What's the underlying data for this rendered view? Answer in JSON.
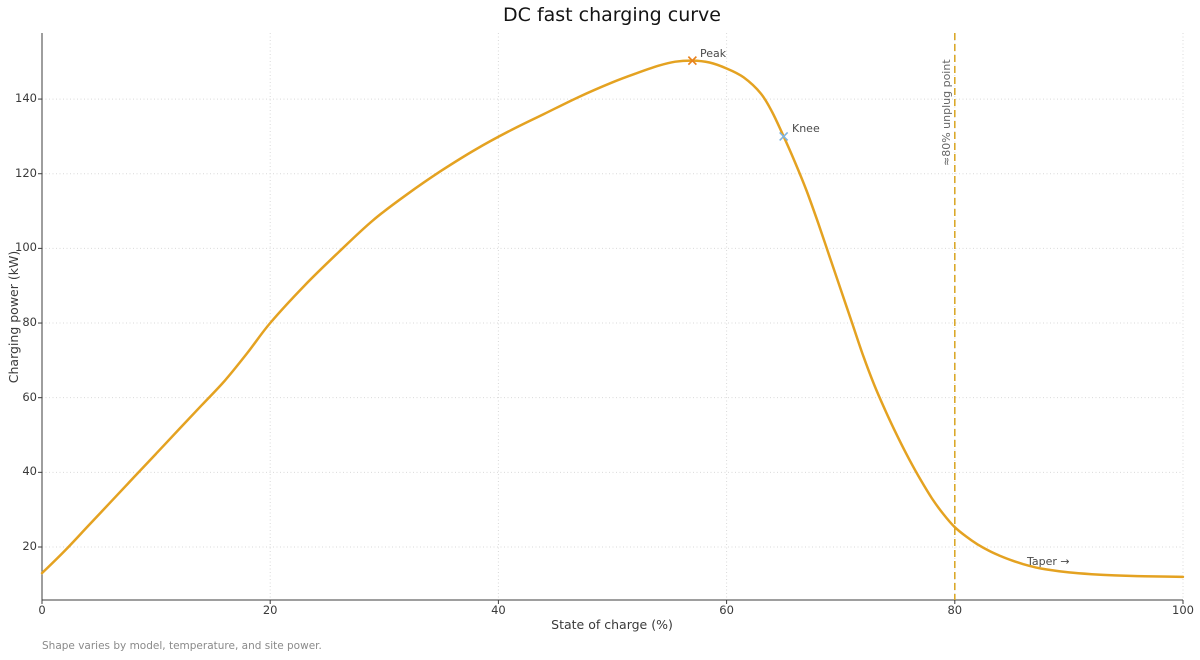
{
  "page": {
    "background": "#ffffff"
  },
  "chart_data": {
    "type": "line",
    "title": "DC fast charging curve",
    "xlabel": "State of charge (%)",
    "ylabel": "Charging power (kW)",
    "xlim": [
      0,
      100
    ],
    "ylim": [
      5.8,
      157.7
    ],
    "xticks": [
      0,
      20,
      40,
      60,
      80,
      100
    ],
    "yticks": [
      20,
      40,
      60,
      80,
      100,
      120,
      140
    ],
    "grid": true,
    "grid_style": "dotted",
    "legend": "none",
    "colors": {
      "curve": "#E4A221",
      "vline": "#D9A41F",
      "grid": "#d9d9d9",
      "spine": "#3c3c3c",
      "peak_marker": "#E8821E",
      "knee_marker": "#7FB5E0",
      "annotation_text": "#4a4a4a",
      "vline_label_text": "#666666",
      "footnote_text": "#8a8a8a"
    },
    "series": [
      {
        "name": "DC fast charging curve",
        "color": "#E4A221",
        "x": [
          0,
          2,
          4,
          6,
          8,
          10,
          12,
          14,
          16,
          18,
          20,
          23,
          26,
          29,
          32,
          35,
          38,
          41,
          44,
          47,
          50,
          52,
          54,
          55.5,
          57,
          58.5,
          60,
          61.5,
          63,
          64,
          65,
          66,
          67,
          68,
          69,
          70,
          71,
          72,
          73,
          74,
          75,
          76,
          77,
          78,
          79,
          80,
          81,
          82,
          83,
          84,
          85,
          86,
          87,
          88,
          90,
          92,
          94,
          96,
          98,
          100
        ],
        "y": [
          13,
          19,
          25.5,
          32,
          38.5,
          45,
          51.5,
          58,
          64.5,
          72,
          80,
          90,
          99,
          107.5,
          114.5,
          120.8,
          126.5,
          131.5,
          136,
          140.5,
          144.5,
          146.8,
          148.9,
          150,
          150.3,
          149.8,
          148.2,
          145.8,
          141.5,
          136.5,
          130,
          123,
          115.5,
          107,
          98,
          89,
          80,
          71,
          63,
          56,
          49.5,
          43.5,
          38,
          33,
          28.8,
          25.3,
          22.8,
          20.7,
          19,
          17.6,
          16.4,
          15.4,
          14.6,
          14,
          13.2,
          12.7,
          12.4,
          12.2,
          12.1,
          12
        ]
      }
    ],
    "annotations": [
      {
        "id": "peak",
        "text": "Peak",
        "x": 57,
        "y": 150.3,
        "marker": "x",
        "marker_color": "#E8821E"
      },
      {
        "id": "knee",
        "text": "Knee",
        "x": 65,
        "y": 130,
        "marker": "x",
        "marker_color": "#7FB5E0"
      },
      {
        "id": "taper",
        "text": "Taper →",
        "x": 86.3,
        "y": 15.7,
        "marker": "none",
        "marker_color": ""
      }
    ],
    "vline": {
      "x": 80,
      "label": "≈80% unplug point",
      "style": "dashed",
      "color": "#D9A41F"
    },
    "footnote": "Shape varies by model, temperature, and site power."
  }
}
